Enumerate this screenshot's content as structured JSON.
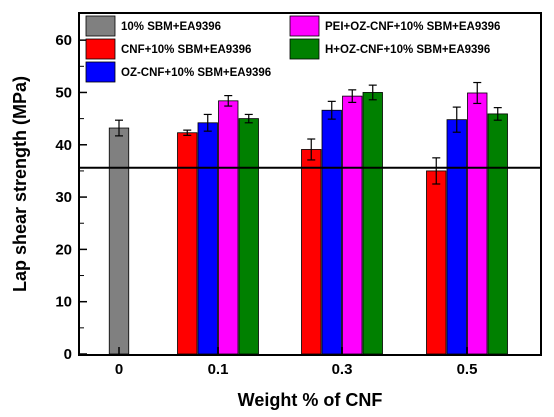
{
  "chart_data": {
    "type": "bar",
    "xlabel": "Weight % of CNF",
    "ylabel": "Lap shear strength (MPa)",
    "ylim": [
      0,
      65
    ],
    "yticks": [
      0,
      10,
      20,
      30,
      40,
      50,
      60
    ],
    "categories": [
      "0",
      "0.1",
      "0.3",
      "0.5"
    ],
    "series": [
      {
        "name": "10% SBM+EA9396",
        "color": "#808080",
        "values": [
          43.2,
          null,
          null,
          null
        ],
        "errors": [
          1.5,
          null,
          null,
          null
        ]
      },
      {
        "name": "CNF+10% SBM+EA9396",
        "color": "#ff0000",
        "values": [
          null,
          42.3,
          39.1,
          35.0
        ],
        "errors": [
          null,
          0.5,
          2.0,
          2.5
        ]
      },
      {
        "name": "OZ-CNF+10% SBM+EA9396",
        "color": "#0000ff",
        "values": [
          null,
          44.2,
          46.6,
          44.8
        ],
        "errors": [
          null,
          1.6,
          1.7,
          2.4
        ]
      },
      {
        "name": "PEI+OZ-CNF+10% SBM+EA9396",
        "color": "#ff00ff",
        "values": [
          null,
          48.4,
          49.3,
          49.9
        ],
        "errors": [
          null,
          1.0,
          1.2,
          2.0
        ]
      },
      {
        "name": "H+OZ-CNF+10% SBM+EA9396",
        "color": "#008000",
        "values": [
          null,
          45.0,
          50.0,
          45.9
        ],
        "errors": [
          null,
          0.8,
          1.4,
          1.2
        ]
      }
    ],
    "reference_line": 35.6,
    "legend_position": "top",
    "grid": false
  }
}
